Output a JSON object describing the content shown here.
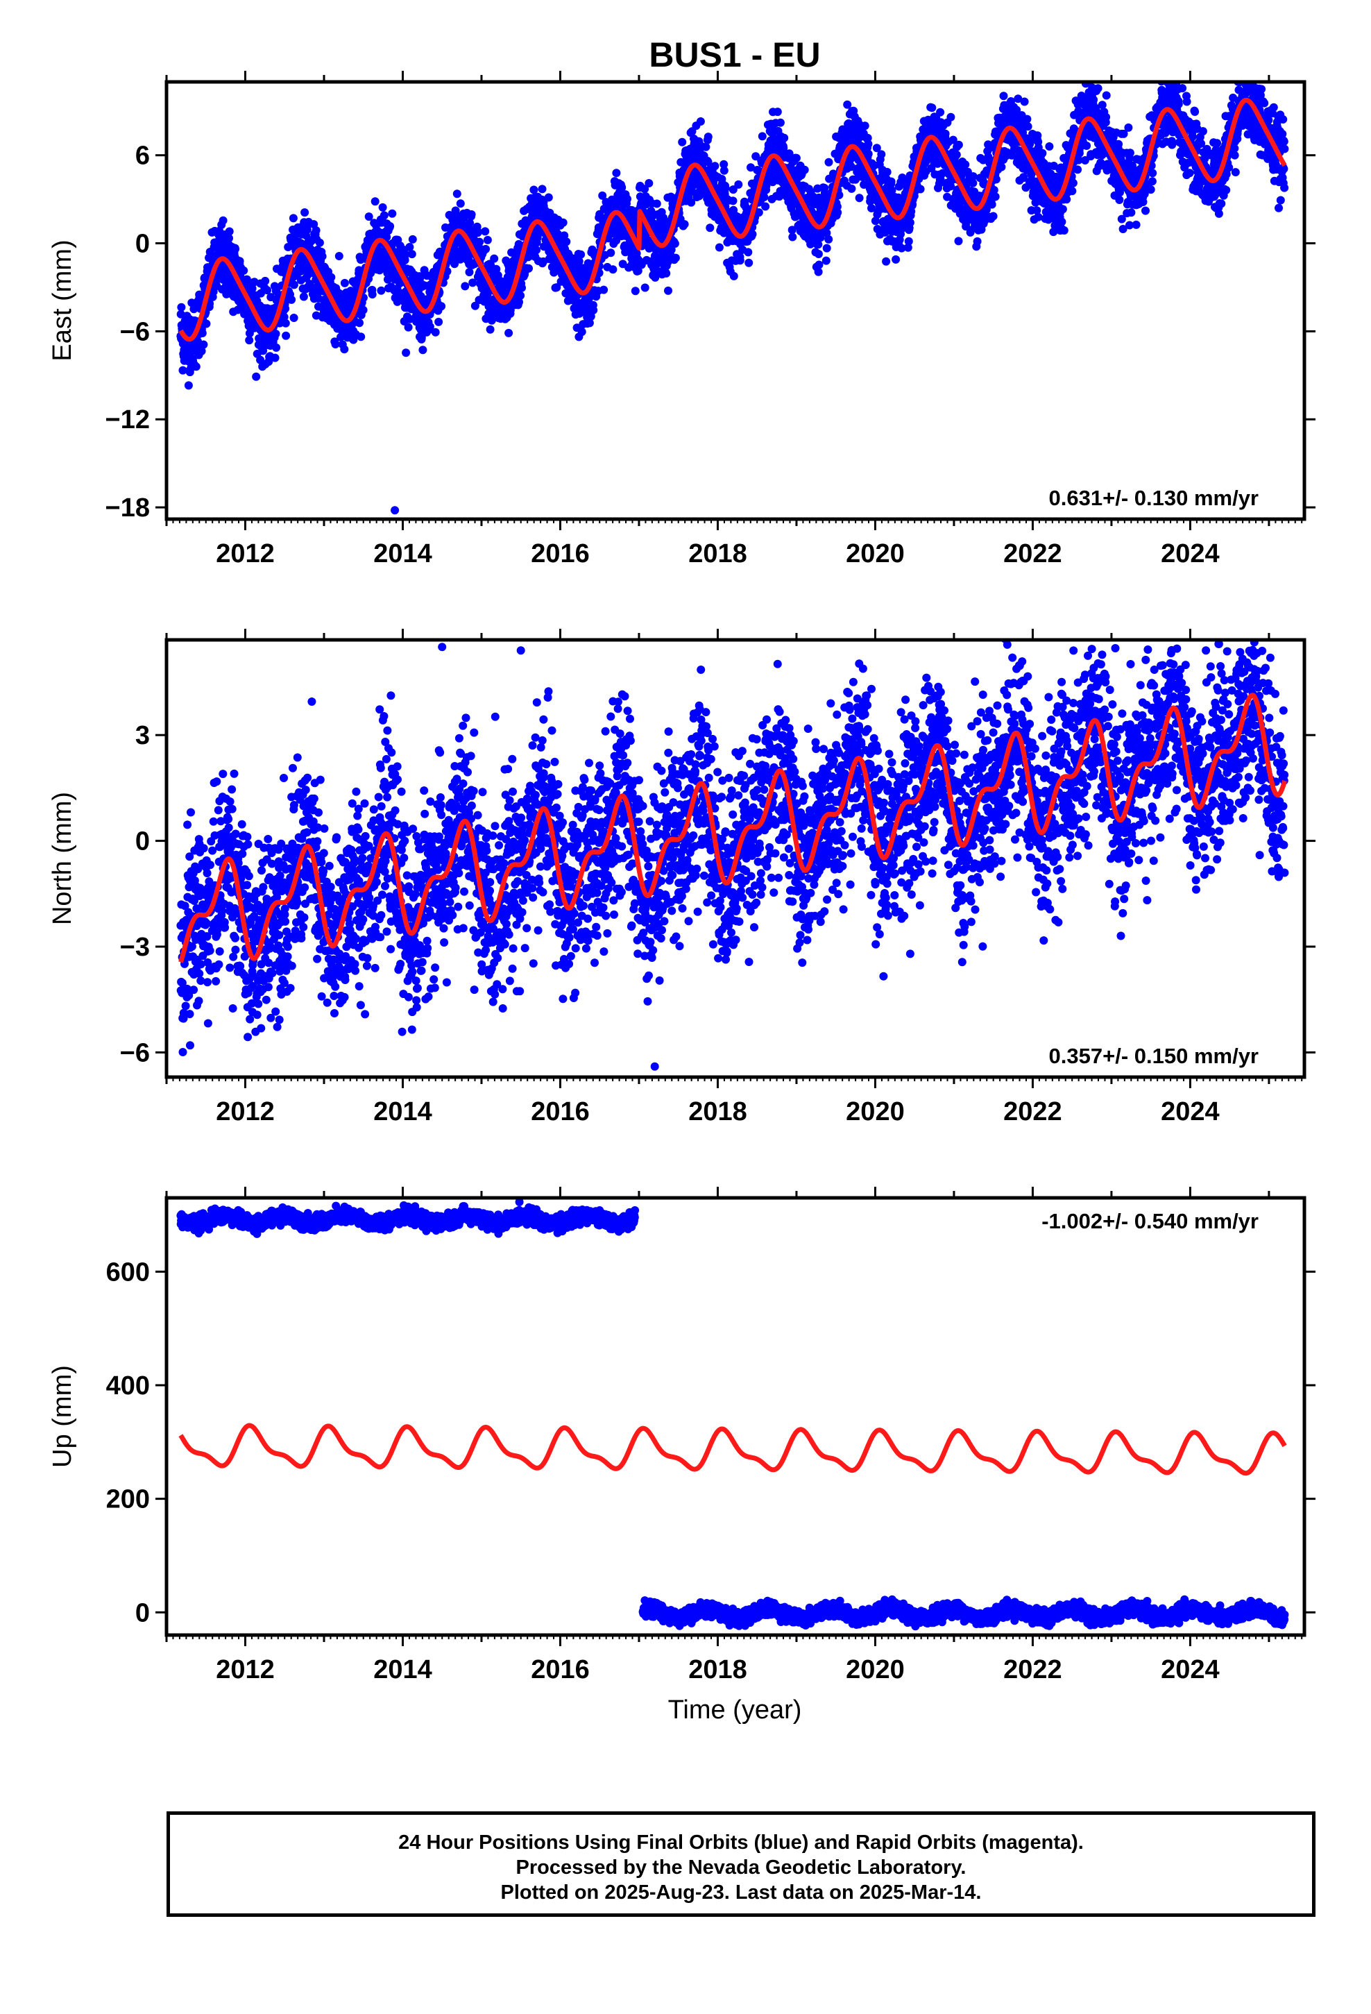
{
  "title": "BUS1 - EU",
  "xlabel": "Time (year)",
  "colors": {
    "points": "#0000ff",
    "model": "#ff1a1a",
    "frame": "#000000"
  },
  "footer": {
    "line1": "24 Hour Positions Using Final Orbits (blue) and Rapid Orbits (magenta).",
    "line2": "Processed by the Nevada Geodetic Laboratory.",
    "line3": "Plotted on 2025-Aug-23. Last data on 2025-Mar-14."
  },
  "chart_data": [
    {
      "type": "scatter",
      "panel": "east",
      "ylabel": "East (mm)",
      "rate_label": "0.631+/- 0.130 mm/yr",
      "rate_position": "bottom-right",
      "xlim": [
        2011.0,
        2025.45
      ],
      "ylim": [
        -18.8,
        11.0
      ],
      "xticks": [
        2012,
        2014,
        2016,
        2018,
        2020,
        2022,
        2024
      ],
      "yticks": [
        -18,
        -12,
        -6,
        0,
        6
      ],
      "grid": false,
      "data_span": [
        2011.18,
        2025.2
      ],
      "model": {
        "trend_start": 2011.18,
        "offset": -4.0,
        "rate": 0.631,
        "step_at": 2017.0,
        "step": 2.6,
        "annual_amp": 2.5,
        "annual_phase": 0.5,
        "semiannual_amp": 0.4,
        "semiannual_phase": 0.0
      },
      "scatter_noise": 1.2,
      "outliers": [
        {
          "x": 2013.9,
          "y": -18.2
        }
      ]
    },
    {
      "type": "scatter",
      "panel": "north",
      "ylabel": "North (mm)",
      "rate_label": "0.357+/- 0.150 mm/yr",
      "rate_position": "bottom-right",
      "xlim": [
        2011.0,
        2025.45
      ],
      "ylim": [
        -6.7,
        5.7
      ],
      "xticks": [
        2012,
        2014,
        2016,
        2018,
        2020,
        2022,
        2024
      ],
      "yticks": [
        -6,
        -3,
        0,
        3
      ],
      "grid": false,
      "data_span": [
        2011.18,
        2025.2
      ],
      "model": {
        "trend_start": 2011.18,
        "offset": -2.2,
        "rate": 0.357,
        "step_at": 2017.0,
        "step": 0.0,
        "annual_amp": 1.1,
        "annual_phase": 0.55,
        "semiannual_amp": 0.6,
        "semiannual_phase": 0.3
      },
      "scatter_noise": 1.3,
      "outliers": [
        {
          "x": 2011.3,
          "y": -5.8
        },
        {
          "x": 2014.5,
          "y": 5.5
        },
        {
          "x": 2015.5,
          "y": 5.4
        },
        {
          "x": 2017.2,
          "y": -6.4
        },
        {
          "x": 2024.2,
          "y": 5.4
        }
      ]
    },
    {
      "type": "scatter",
      "panel": "up",
      "ylabel": "Up (mm)",
      "rate_label": "-1.002+/- 0.540 mm/yr",
      "rate_position": "top-right",
      "xlim": [
        2011.0,
        2025.45
      ],
      "ylim": [
        -40,
        730
      ],
      "xticks": [
        2012,
        2014,
        2016,
        2018,
        2020,
        2022,
        2024
      ],
      "yticks": [
        0,
        200,
        400,
        600
      ],
      "grid": false,
      "segments": [
        {
          "x_start": 2011.18,
          "x_end": 2016.95,
          "level": 692,
          "amp": 7
        },
        {
          "x_start": 2017.05,
          "x_end": 2025.2,
          "level": -2,
          "amp": 8
        }
      ],
      "model": {
        "trend_start": 2011.18,
        "offset": 290,
        "rate": -1.002,
        "step_at": 2017.0,
        "step": 0.0,
        "annual_amp": 30,
        "annual_phase": 0.15,
        "semiannual_amp": 12,
        "semiannual_phase": 0.6
      },
      "scatter_noise": 6
    }
  ]
}
